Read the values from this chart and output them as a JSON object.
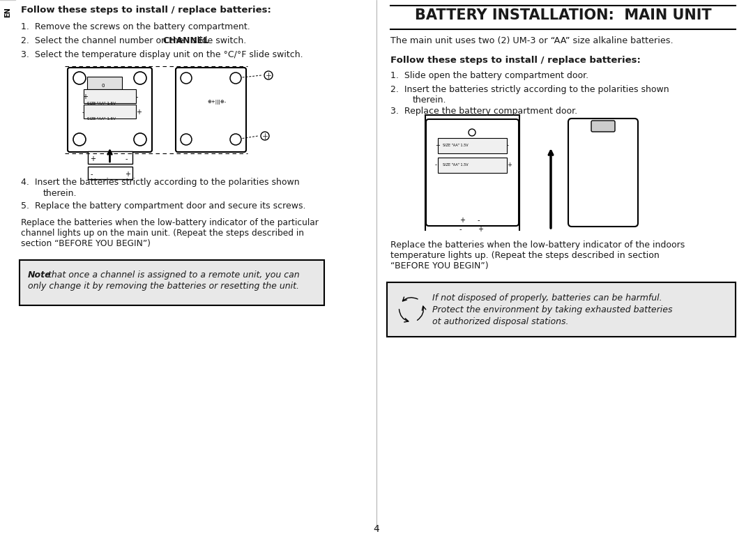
{
  "bg_color": "#ffffff",
  "text_color": "#1a1a1a",
  "page_number": "4",
  "left_column": {
    "en_label": "EN",
    "heading": "Follow these steps to install / replace batteries:",
    "step1": "Remove the screws on the battery compartment.",
    "step2_pre": "Select the channel number on the ",
    "step2_bold": "CHANNEL",
    "step2_post": " slide switch.",
    "step3": "Select the temperature display unit on the °C/°F slide switch.",
    "step4_line1": "Insert the batteries strictly according to the polarities shown",
    "step4_line2": "therein.",
    "step5": "Replace the battery compartment door and secure its screws.",
    "para_line1": "Replace the batteries when the low-battery indicator of the particular",
    "para_line2": "channel lights up on the main unit. (Repeat the steps described in",
    "para_line3": "section “BEFORE YOU BEGIN”)",
    "note_bold": "Note",
    "note_rest_line1": " that once a channel is assigned to a remote unit, you can",
    "note_line2": "only change it by removing the batteries or resetting the unit."
  },
  "right_column": {
    "title": "BATTERY INSTALLATION:  MAIN UNIT",
    "intro": "The main unit uses two (2) UM-3 or “AA” size alkaline batteries.",
    "heading": "Follow these steps to install / replace batteries:",
    "step1": "Slide open the battery compartment door.",
    "step2_line1": "Insert the batteries strictly according to the polarities shown",
    "step2_line2": "therein.",
    "step3": "Replace the battery compartment door.",
    "para_line1": "Replace the batteries when the low-battery indicator of the indoors",
    "para_line2": "temperature lights up. (Repeat the steps described in section",
    "para_line3": "“BEFORE YOU BEGIN”)",
    "rec_line1": "If not disposed of properly, batteries can be harmful.",
    "rec_line2": "Protect the environment by taking exhausted batteries",
    "rec_line3": "ot authorized disposal stations."
  }
}
